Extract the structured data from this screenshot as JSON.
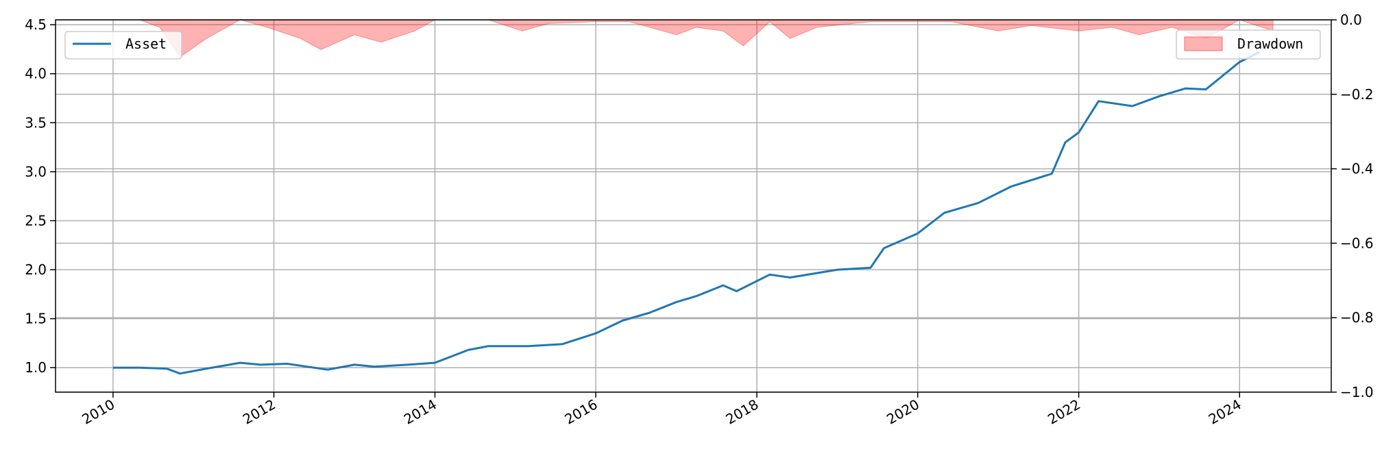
{
  "chart_data": {
    "type": "line",
    "title": "",
    "xlabel": "",
    "ylabel": "",
    "x_axis": {
      "type": "date",
      "range": [
        "2009-04-15",
        "2025-02-20"
      ],
      "ticks": [
        {
          "date": "2010-01-01",
          "label": "2010"
        },
        {
          "date": "2012-01-01",
          "label": "2012"
        },
        {
          "date": "2014-01-01",
          "label": "2014"
        },
        {
          "date": "2016-01-01",
          "label": "2016"
        },
        {
          "date": "2018-01-01",
          "label": "2018"
        },
        {
          "date": "2020-01-01",
          "label": "2020"
        },
        {
          "date": "2022-01-01",
          "label": "2022"
        },
        {
          "date": "2024-01-01",
          "label": "2024"
        }
      ],
      "tick_label_rotation": 30
    },
    "y_left": {
      "range": [
        0.75,
        4.55
      ],
      "ticks": [
        1.0,
        1.5,
        2.0,
        2.5,
        3.0,
        3.5,
        4.0,
        4.5
      ],
      "tick_labels": [
        "1.0",
        "1.5",
        "2.0",
        "2.5",
        "3.0",
        "3.5",
        "4.0",
        "4.5"
      ]
    },
    "y_right": {
      "range": [
        -1.0,
        0.0
      ],
      "ticks": [
        0.0,
        -0.2,
        -0.4,
        -0.6,
        -0.8,
        -1.0
      ],
      "tick_labels": [
        "0.0",
        "−0.2",
        "−0.4",
        "−0.6",
        "−0.8",
        "−1.0"
      ]
    },
    "grid": true,
    "series": [
      {
        "name": "Asset",
        "type": "line",
        "axis": "left",
        "color": "#1f77b4",
        "points": [
          [
            "2010-01-01",
            1.0
          ],
          [
            "2010-05-01",
            1.0
          ],
          [
            "2010-09-01",
            0.99
          ],
          [
            "2010-11-01",
            0.94
          ],
          [
            "2011-03-01",
            0.99
          ],
          [
            "2011-08-01",
            1.05
          ],
          [
            "2011-11-01",
            1.03
          ],
          [
            "2012-03-01",
            1.04
          ],
          [
            "2012-06-01",
            1.01
          ],
          [
            "2012-09-01",
            0.98
          ],
          [
            "2013-01-01",
            1.03
          ],
          [
            "2013-04-01",
            1.01
          ],
          [
            "2013-09-01",
            1.03
          ],
          [
            "2014-01-01",
            1.05
          ],
          [
            "2014-06-01",
            1.18
          ],
          [
            "2014-09-01",
            1.22
          ],
          [
            "2015-03-01",
            1.22
          ],
          [
            "2015-08-01",
            1.24
          ],
          [
            "2016-01-01",
            1.35
          ],
          [
            "2016-05-01",
            1.48
          ],
          [
            "2016-09-01",
            1.56
          ],
          [
            "2017-01-01",
            1.67
          ],
          [
            "2017-04-01",
            1.73
          ],
          [
            "2017-08-01",
            1.84
          ],
          [
            "2017-10-01",
            1.78
          ],
          [
            "2018-03-01",
            1.95
          ],
          [
            "2018-06-01",
            1.92
          ],
          [
            "2019-01-01",
            2.0
          ],
          [
            "2019-06-01",
            2.02
          ],
          [
            "2019-08-01",
            2.22
          ],
          [
            "2020-01-01",
            2.37
          ],
          [
            "2020-05-01",
            2.58
          ],
          [
            "2020-10-01",
            2.68
          ],
          [
            "2021-03-01",
            2.85
          ],
          [
            "2021-09-01",
            2.98
          ],
          [
            "2021-11-01",
            3.3
          ],
          [
            "2022-01-01",
            3.4
          ],
          [
            "2022-04-01",
            3.72
          ],
          [
            "2022-09-01",
            3.67
          ],
          [
            "2023-01-01",
            3.77
          ],
          [
            "2023-05-01",
            3.85
          ],
          [
            "2023-08-01",
            3.84
          ],
          [
            "2024-01-01",
            4.12
          ],
          [
            "2024-04-01",
            4.22
          ]
        ]
      },
      {
        "name": "Drawdown",
        "type": "area",
        "axis": "right",
        "color": "#ff0000",
        "opacity": 0.3,
        "points": [
          [
            "2010-05-01",
            0.0
          ],
          [
            "2010-08-01",
            -0.02
          ],
          [
            "2010-11-01",
            -0.1
          ],
          [
            "2011-03-01",
            -0.05
          ],
          [
            "2011-08-01",
            0.0
          ],
          [
            "2011-12-01",
            -0.02
          ],
          [
            "2012-05-01",
            -0.05
          ],
          [
            "2012-08-01",
            -0.08
          ],
          [
            "2013-01-01",
            -0.04
          ],
          [
            "2013-05-01",
            -0.06
          ],
          [
            "2013-10-01",
            -0.03
          ],
          [
            "2014-01-01",
            0.0
          ],
          [
            "2014-09-01",
            0.0
          ],
          [
            "2015-02-01",
            -0.03
          ],
          [
            "2015-06-01",
            -0.01
          ],
          [
            "2016-01-01",
            -0.005
          ],
          [
            "2016-06-01",
            -0.005
          ],
          [
            "2017-01-01",
            -0.04
          ],
          [
            "2017-04-01",
            -0.02
          ],
          [
            "2017-08-01",
            -0.03
          ],
          [
            "2017-11-01",
            -0.07
          ],
          [
            "2018-03-01",
            -0.005
          ],
          [
            "2018-06-01",
            -0.05
          ],
          [
            "2018-10-01",
            -0.02
          ],
          [
            "2019-06-01",
            -0.005
          ],
          [
            "2020-01-01",
            -0.005
          ],
          [
            "2020-06-01",
            -0.005
          ],
          [
            "2021-01-01",
            -0.03
          ],
          [
            "2021-06-01",
            -0.015
          ],
          [
            "2022-01-01",
            -0.03
          ],
          [
            "2022-06-01",
            -0.02
          ],
          [
            "2022-10-01",
            -0.04
          ],
          [
            "2023-03-01",
            -0.02
          ],
          [
            "2023-08-01",
            -0.05
          ],
          [
            "2024-01-01",
            0.0
          ],
          [
            "2024-06-01",
            -0.03
          ]
        ]
      }
    ],
    "legends": [
      {
        "series": "Asset",
        "position": "upper-left"
      },
      {
        "series": "Drawdown",
        "position": "upper-right"
      }
    ]
  }
}
